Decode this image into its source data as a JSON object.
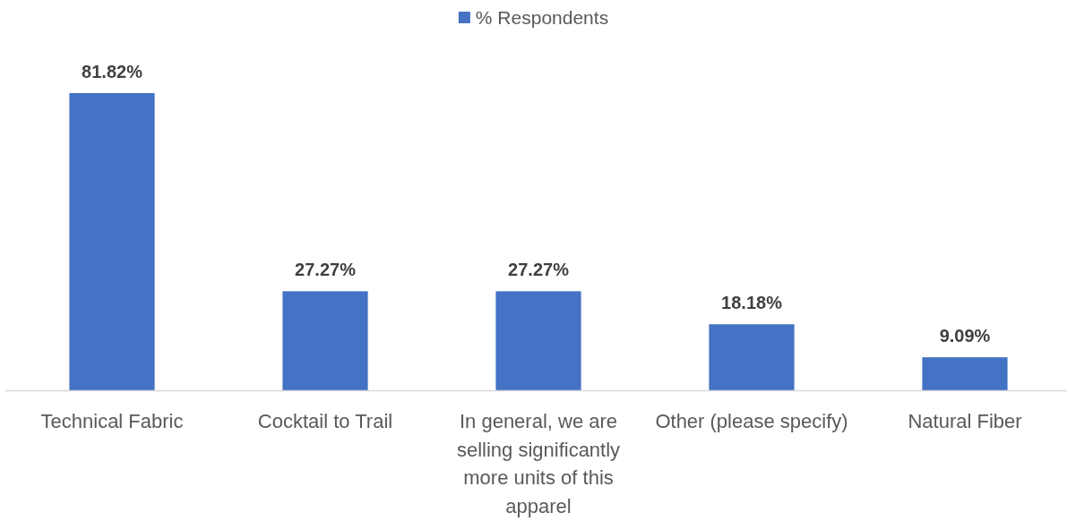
{
  "chart_data": {
    "type": "bar",
    "categories": [
      "Technical Fabric",
      "Cocktail to Trail",
      "In general, we are selling significantly more units of this apparel",
      "Other (please specify)",
      "Natural Fiber"
    ],
    "series": [
      {
        "name": "% Respondents",
        "color": "#4472c4",
        "values": [
          81.82,
          27.27,
          27.27,
          18.18,
          9.09
        ],
        "value_labels": [
          "81.82%",
          "27.27%",
          "27.27%",
          "18.18%",
          "9.09%"
        ]
      }
    ],
    "legend": "top"
  }
}
